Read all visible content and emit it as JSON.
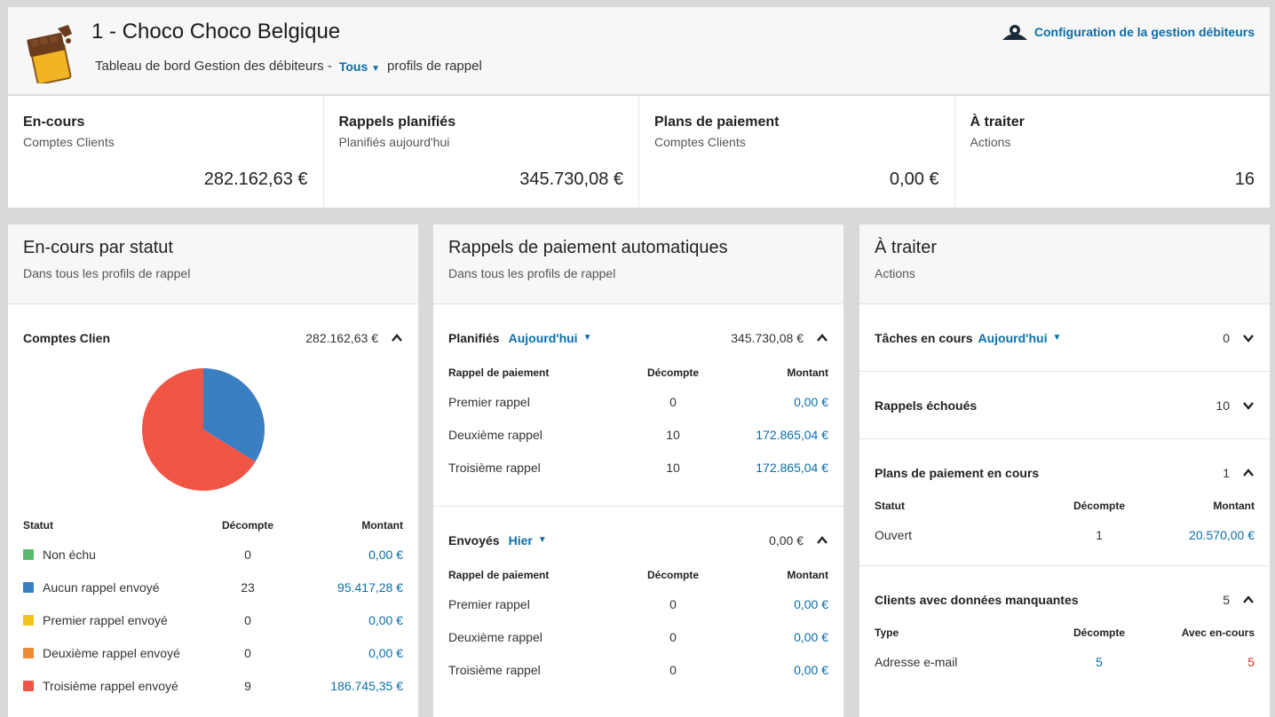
{
  "header": {
    "company": "1 - Choco Choco Belgique",
    "subtitle_prefix": "Tableau de bord Gestion des débiteurs -",
    "profile_filter": "Tous",
    "subtitle_suffix": "profils de rappel",
    "config_link": "Configuration de la gestion débiteurs"
  },
  "kpis": [
    {
      "title": "En-cours",
      "sub": "Comptes Clients",
      "value": "282.162,63 €"
    },
    {
      "title": "Rappels planifiés",
      "sub": "Planifiés aujourd'hui",
      "value": "345.730,08 €"
    },
    {
      "title": "Plans de paiement",
      "sub": "Comptes Clients",
      "value": "0,00 €"
    },
    {
      "title": "À traiter",
      "sub": "Actions",
      "value": "16"
    }
  ],
  "panel1": {
    "title": "En-cours par statut",
    "sub": "Dans tous les profils de rappel",
    "section_label": "Comptes Clien",
    "section_total": "282.162,63 €",
    "col_status": "Statut",
    "col_count": "Décompte",
    "col_amount": "Montant",
    "rows": [
      {
        "label": "Non échu",
        "count": "0",
        "amount": "0,00 €",
        "color": "#5cb96b"
      },
      {
        "label": "Aucun rappel envoyé",
        "count": "23",
        "amount": "95.417,28 €",
        "color": "#3a7fc1"
      },
      {
        "label": "Premier rappel envoyé",
        "count": "0",
        "amount": "0,00 €",
        "color": "#f0c419"
      },
      {
        "label": "Deuxième rappel envoyé",
        "count": "0",
        "amount": "0,00 €",
        "color": "#ef8a34"
      },
      {
        "label": "Troisième rappel envoyé",
        "count": "9",
        "amount": "186.745,35 €",
        "color": "#f05545"
      }
    ]
  },
  "panel2": {
    "title": "Rappels de paiement automatiques",
    "sub": "Dans tous les profils de rappel",
    "planned_label": "Planifiés",
    "planned_filter": "Aujourd'hui",
    "planned_total": "345.730,08 €",
    "sent_label": "Envoyés",
    "sent_filter": "Hier",
    "sent_total": "0,00 €",
    "col_reminder": "Rappel de paiement",
    "col_count": "Décompte",
    "col_amount": "Montant",
    "planned_rows": [
      {
        "label": "Premier rappel",
        "count": "0",
        "amount": "0,00 €"
      },
      {
        "label": "Deuxième rappel",
        "count": "10",
        "amount": "172.865,04 €"
      },
      {
        "label": "Troisième rappel",
        "count": "10",
        "amount": "172.865,04 €"
      }
    ],
    "sent_rows": [
      {
        "label": "Premier rappel",
        "count": "0",
        "amount": "0,00 €"
      },
      {
        "label": "Deuxième rappel",
        "count": "0",
        "amount": "0,00 €"
      },
      {
        "label": "Troisième rappel",
        "count": "0",
        "amount": "0,00 €"
      }
    ]
  },
  "panel3": {
    "title": "À traiter",
    "sub": "Actions",
    "tasks_label": "Tâches en cours",
    "tasks_filter": "Aujourd'hui",
    "tasks_count": "0",
    "failed_label": "Rappels échoués",
    "failed_count": "10",
    "plans_label": "Plans de paiement en cours",
    "plans_count": "1",
    "plans_col_status": "Statut",
    "plans_col_count": "Décompte",
    "plans_col_amount": "Montant",
    "plans_row": {
      "label": "Ouvert",
      "count": "1",
      "amount": "20.570,00 €"
    },
    "missing_label": "Clients avec données manquantes",
    "missing_count": "5",
    "missing_col_type": "Type",
    "missing_col_count": "Décompte",
    "missing_col_outstanding": "Avec en-cours",
    "missing_row": {
      "label": "Adresse e-mail",
      "count": "5",
      "outstanding": "5"
    }
  },
  "chart_data": {
    "type": "pie",
    "slices": [
      {
        "label": "Aucun rappel envoyé",
        "value": 95417.28,
        "color": "#3a7fc1"
      },
      {
        "label": "Troisième rappel envoyé",
        "value": 186745.35,
        "color": "#f05545"
      }
    ]
  }
}
